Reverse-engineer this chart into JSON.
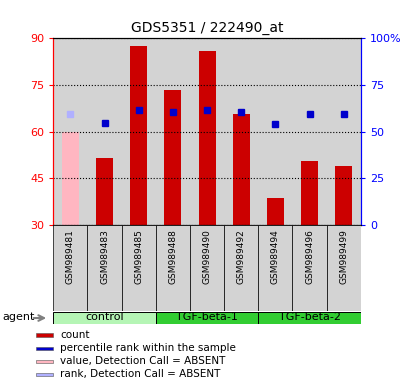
{
  "title": "GDS5351 / 222490_at",
  "samples": [
    "GSM989481",
    "GSM989483",
    "GSM989485",
    "GSM989488",
    "GSM989490",
    "GSM989492",
    "GSM989494",
    "GSM989496",
    "GSM989499"
  ],
  "groups": [
    {
      "label": "control",
      "indices": [
        0,
        1,
        2
      ],
      "color": "#90ee90"
    },
    {
      "label": "TGF-beta-1",
      "indices": [
        3,
        4,
        5
      ],
      "color": "#32cd32"
    },
    {
      "label": "TGF-beta-2",
      "indices": [
        6,
        7,
        8
      ],
      "color": "#32cd32"
    }
  ],
  "bar_values": [
    60.0,
    51.5,
    87.5,
    73.5,
    86.0,
    65.5,
    38.5,
    50.5,
    49.0
  ],
  "bar_absent": [
    true,
    false,
    false,
    false,
    false,
    false,
    false,
    false,
    false
  ],
  "rank_values": [
    59.5,
    54.5,
    61.5,
    60.5,
    61.5,
    60.5,
    54.0,
    59.2,
    59.5
  ],
  "rank_absent": [
    true,
    false,
    false,
    false,
    false,
    false,
    false,
    false,
    false
  ],
  "ylim_left": [
    30,
    90
  ],
  "ylim_right": [
    0,
    100
  ],
  "yticks_left": [
    30,
    45,
    60,
    75,
    90
  ],
  "ytick_labels_left": [
    "30",
    "45",
    "60",
    "75",
    "90"
  ],
  "yticks_right": [
    0,
    25,
    50,
    75,
    100
  ],
  "ytick_labels_right": [
    "0",
    "25",
    "50",
    "75",
    "100%"
  ],
  "bar_color": "#cc0000",
  "bar_absent_color": "#ffb6c1",
  "rank_color": "#0000cc",
  "rank_absent_color": "#b0b0ff",
  "plot_bg": "#ffffff",
  "sample_bg": "#d3d3d3",
  "group_light": "#b5f5b5",
  "group_dark": "#32cd32",
  "agent_label": "agent",
  "legend": [
    {
      "label": "count",
      "color": "#cc0000"
    },
    {
      "label": "percentile rank within the sample",
      "color": "#0000cc"
    },
    {
      "label": "value, Detection Call = ABSENT",
      "color": "#ffb6c1"
    },
    {
      "label": "rank, Detection Call = ABSENT",
      "color": "#b0b0ff"
    }
  ],
  "fig_width": 4.1,
  "fig_height": 3.84,
  "dpi": 100
}
